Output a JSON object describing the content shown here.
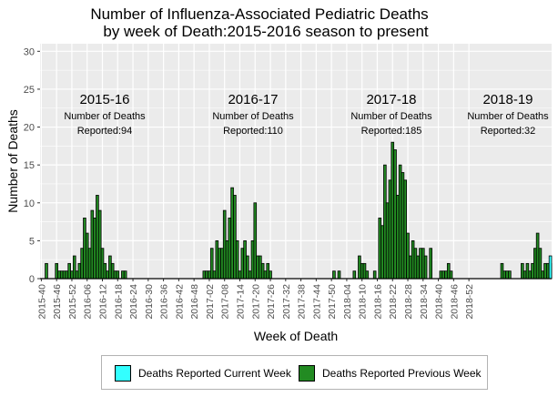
{
  "chart_data": {
    "type": "bar",
    "title": "Number of Influenza-Associated Pediatric Deaths",
    "subtitle": "by week of Death:2015-2016 season to present",
    "xlabel": "Week of Death",
    "ylabel": "Number of Deaths",
    "ylim": [
      0,
      31
    ],
    "yticks": [
      0,
      5,
      10,
      15,
      20,
      25,
      30
    ],
    "grid": true,
    "legend_position": "bottom",
    "colors": {
      "current": "#33ffff",
      "previous": "#228b22",
      "panel": "#ebebeb",
      "grid": "#ffffff"
    },
    "x_tick_labels": [
      "2015-40",
      "2015-46",
      "2015-52",
      "2016-06",
      "2016-12",
      "2016-18",
      "2016-24",
      "2016-30",
      "2016-36",
      "2016-42",
      "2016-48",
      "2017-02",
      "2017-08",
      "2017-14",
      "2017-20",
      "2017-26",
      "2017-32",
      "2017-38",
      "2017-44",
      "2017-50",
      "2018-04",
      "2018-10",
      "2018-16",
      "2018-22",
      "2018-28",
      "2018-34",
      "2018-40",
      "2018-46",
      "2018-52"
    ],
    "series": [
      {
        "name": "Deaths Reported Previous Week",
        "color": "#228b22",
        "values": [
          0,
          0,
          2,
          0,
          0,
          0,
          2,
          1,
          1,
          1,
          1,
          2,
          1,
          3,
          1,
          2,
          4,
          8,
          6,
          4,
          9,
          8,
          11,
          9,
          4,
          2,
          1,
          3,
          2,
          1,
          1,
          0,
          1,
          1,
          0,
          0,
          0,
          0,
          0,
          0,
          0,
          0,
          0,
          0,
          0,
          0,
          0,
          0,
          0,
          0,
          0,
          0,
          0,
          0,
          0,
          0,
          0,
          0,
          0,
          0,
          0,
          0,
          0,
          0,
          1,
          1,
          1,
          4,
          1,
          5,
          4,
          4,
          9,
          5,
          8,
          12,
          11,
          5,
          1,
          4,
          5,
          3,
          1,
          5,
          10,
          3,
          3,
          2,
          1,
          2,
          1,
          0,
          0,
          0,
          0,
          0,
          0,
          0,
          0,
          0,
          0,
          0,
          0,
          0,
          0,
          0,
          0,
          0,
          0,
          0,
          0,
          0,
          0,
          0,
          0,
          1,
          0,
          1,
          0,
          0,
          0,
          0,
          0,
          1,
          0,
          3,
          2,
          2,
          1,
          0,
          0,
          1,
          0,
          8,
          7,
          15,
          10,
          13,
          18,
          17,
          11,
          15,
          14,
          13,
          6,
          3,
          5,
          4,
          3,
          4,
          4,
          3,
          0,
          4,
          0,
          0,
          0,
          1,
          1,
          1,
          2,
          1,
          0,
          0,
          0,
          0,
          0,
          0,
          0,
          0,
          0,
          0,
          0,
          0,
          0,
          0,
          0,
          0,
          0,
          0,
          0,
          2,
          1,
          1,
          1,
          0,
          0,
          0,
          0,
          2,
          1,
          2,
          1,
          2,
          4,
          6,
          4,
          1,
          2,
          2,
          2
        ]
      },
      {
        "name": "Deaths Reported Current Week",
        "color": "#33ffff",
        "values": [
          0,
          0,
          0,
          0,
          0,
          0,
          0,
          0,
          0,
          0,
          0,
          0,
          0,
          0,
          0,
          0,
          0,
          0,
          0,
          0,
          0,
          0,
          0,
          0,
          0,
          0,
          0,
          0,
          0,
          0,
          0,
          0,
          0,
          0,
          0,
          0,
          0,
          0,
          0,
          0,
          0,
          0,
          0,
          0,
          0,
          0,
          0,
          0,
          0,
          0,
          0,
          0,
          0,
          0,
          0,
          0,
          0,
          0,
          0,
          0,
          0,
          0,
          0,
          0,
          0,
          0,
          0,
          0,
          0,
          0,
          0,
          0,
          0,
          0,
          0,
          0,
          0,
          0,
          0,
          0,
          0,
          0,
          0,
          0,
          0,
          0,
          0,
          0,
          0,
          0,
          0,
          0,
          0,
          0,
          0,
          0,
          0,
          0,
          0,
          0,
          0,
          0,
          0,
          0,
          0,
          0,
          0,
          0,
          0,
          0,
          0,
          0,
          0,
          0,
          0,
          0,
          0,
          0,
          0,
          0,
          0,
          0,
          0,
          0,
          0,
          0,
          0,
          0,
          0,
          0,
          0,
          0,
          0,
          0,
          0,
          0,
          0,
          0,
          0,
          0,
          0,
          0,
          0,
          0,
          0,
          0,
          0,
          0,
          0,
          0,
          0,
          0,
          0,
          0,
          0,
          0,
          0,
          0,
          0,
          0,
          0,
          0,
          0,
          0,
          0,
          0,
          0,
          0,
          0,
          0,
          0,
          0,
          0,
          0,
          0,
          0,
          0,
          0,
          0,
          0,
          0,
          0,
          0,
          0,
          0,
          0,
          0,
          0,
          0,
          0,
          0,
          0,
          0,
          0,
          0,
          0,
          0,
          0,
          0,
          0,
          3
        ]
      }
    ],
    "annotations": [
      {
        "season": "2015-16",
        "line1": "Number of Deaths",
        "line2": "Reported:94"
      },
      {
        "season": "2016-17",
        "line1": "Number of Deaths",
        "line2": "Reported:110"
      },
      {
        "season": "2017-18",
        "line1": "Number of Deaths",
        "line2": "Reported:185"
      },
      {
        "season": "2018-19",
        "line1": "Number of Deaths",
        "line2": "Reported:32"
      }
    ]
  },
  "legend": {
    "current_label": "Deaths Reported Current Week",
    "previous_label": "Deaths Reported Previous Week"
  }
}
